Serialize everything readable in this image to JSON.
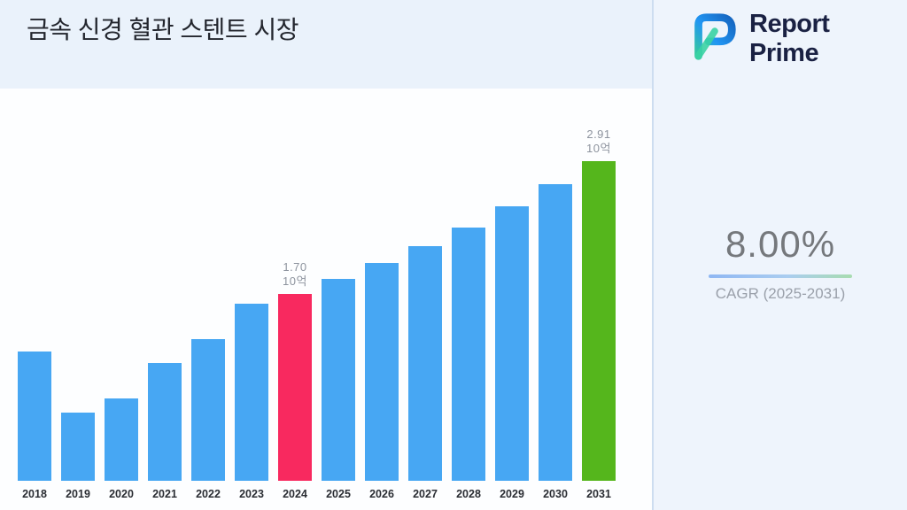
{
  "title": "금속 신경 혈관 스텐트 시장",
  "logo": {
    "line1": "Report",
    "line2": "Prime"
  },
  "stats": {
    "cagr_value": "8.00%",
    "cagr_label": "CAGR (2025-2031)"
  },
  "chart_data": {
    "type": "bar",
    "title": "금속 신경 혈관 스텐트 시장",
    "categories": [
      "2018",
      "2019",
      "2020",
      "2021",
      "2022",
      "2023",
      "2024",
      "2025",
      "2026",
      "2027",
      "2028",
      "2029",
      "2030",
      "2031"
    ],
    "values": [
      1.18,
      0.62,
      0.75,
      1.07,
      1.29,
      1.61,
      1.7,
      1.84,
      1.98,
      2.14,
      2.31,
      2.5,
      2.7,
      2.91
    ],
    "unit": "10억",
    "ylim": [
      0,
      3
    ],
    "xlabel": "",
    "ylabel": "",
    "grid": false,
    "legend": false,
    "annotations": [
      {
        "category": "2024",
        "text_value": "1.70",
        "text_unit": "10억"
      },
      {
        "category": "2031",
        "text_value": "2.91",
        "text_unit": "10억"
      }
    ],
    "colors": {
      "default": "#47a7f3",
      "2024": "#f8295f",
      "2031": "#55b61c"
    }
  }
}
